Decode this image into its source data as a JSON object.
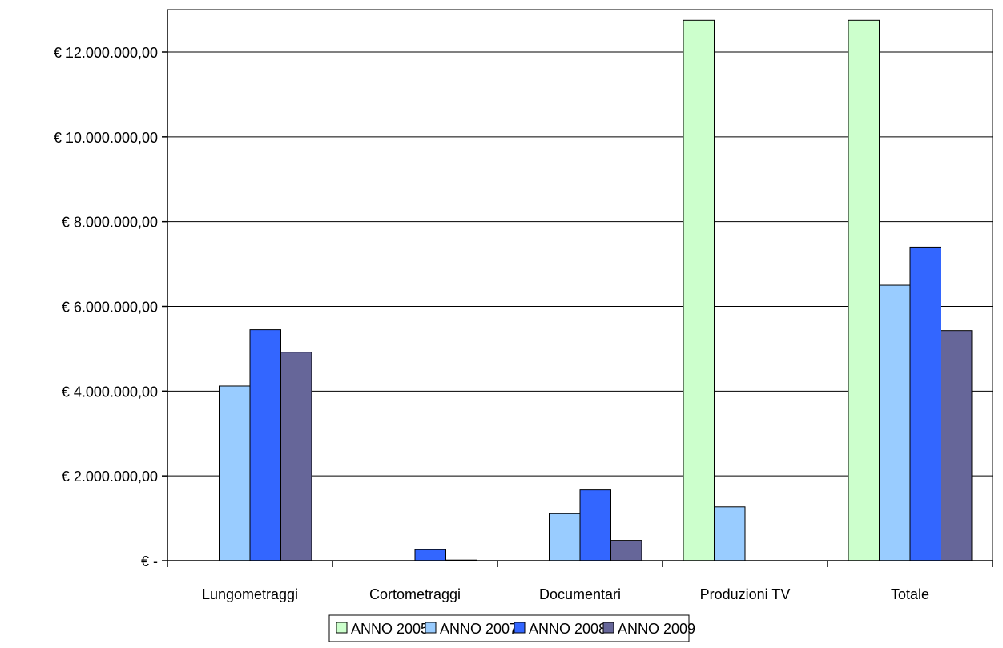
{
  "chart_data": {
    "type": "bar",
    "title": "",
    "xlabel": "",
    "ylabel": "",
    "categories": [
      "Lungometraggi",
      "Cortometraggi",
      "Documentari",
      "Produzioni TV",
      "Totale"
    ],
    "series": [
      {
        "name": "ANNO 2005",
        "color": "#CCFFCC",
        "values": [
          0,
          0,
          0,
          12750000,
          12750000
        ]
      },
      {
        "name": "ANNO 2007",
        "color": "#99CCFF",
        "values": [
          4120000,
          0,
          1110000,
          1270000,
          6500000
        ]
      },
      {
        "name": "ANNO 2008",
        "color": "#3366FF",
        "values": [
          5450000,
          260000,
          1670000,
          0,
          7400000
        ]
      },
      {
        "name": "ANNO 2009",
        "color": "#666699",
        "values": [
          4920000,
          15000,
          480000,
          0,
          5430000
        ]
      }
    ],
    "ylim": [
      0,
      13000000
    ],
    "yticks": [
      0,
      2000000,
      4000000,
      6000000,
      8000000,
      10000000,
      12000000
    ],
    "ytick_labels": [
      "€ -",
      "€ 2.000.000,00",
      "€ 4.000.000,00",
      "€ 6.000.000,00",
      "€ 8.000.000,00",
      "€ 10.000.000,00",
      "€ 12.000.000,00"
    ],
    "grid": true,
    "legend_position": "bottom"
  }
}
